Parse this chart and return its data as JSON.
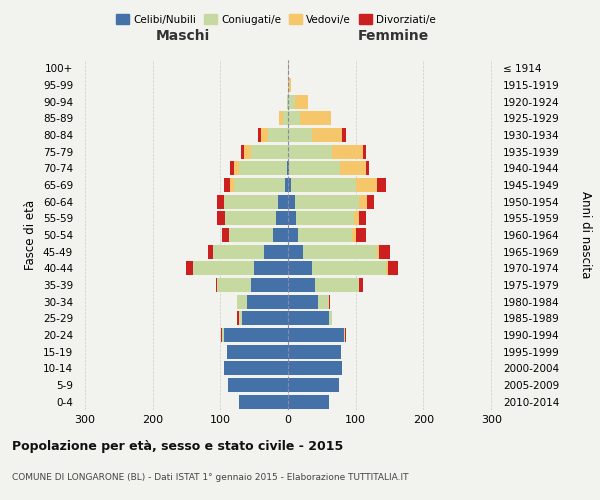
{
  "age_groups": [
    "0-4",
    "5-9",
    "10-14",
    "15-19",
    "20-24",
    "25-29",
    "30-34",
    "35-39",
    "40-44",
    "45-49",
    "50-54",
    "55-59",
    "60-64",
    "65-69",
    "70-74",
    "75-79",
    "80-84",
    "85-89",
    "90-94",
    "95-99",
    "100+"
  ],
  "birth_years": [
    "2010-2014",
    "2005-2009",
    "2000-2004",
    "1995-1999",
    "1990-1994",
    "1985-1989",
    "1980-1984",
    "1975-1979",
    "1970-1974",
    "1965-1969",
    "1960-1964",
    "1955-1959",
    "1950-1954",
    "1945-1949",
    "1940-1944",
    "1935-1939",
    "1930-1934",
    "1925-1929",
    "1920-1924",
    "1915-1919",
    "≤ 1914"
  ],
  "males": {
    "celibe": [
      72,
      88,
      95,
      90,
      95,
      68,
      60,
      55,
      50,
      35,
      22,
      18,
      15,
      5,
      2,
      0,
      0,
      0,
      0,
      0,
      0
    ],
    "coniugato": [
      0,
      0,
      0,
      0,
      2,
      5,
      15,
      50,
      90,
      75,
      65,
      75,
      80,
      75,
      70,
      55,
      30,
      8,
      2,
      0,
      0
    ],
    "vedovo": [
      0,
      0,
      0,
      0,
      0,
      0,
      0,
      0,
      0,
      0,
      0,
      0,
      0,
      5,
      8,
      10,
      10,
      5,
      0,
      0,
      0
    ],
    "divorziato": [
      0,
      0,
      0,
      0,
      2,
      2,
      0,
      2,
      10,
      8,
      10,
      12,
      10,
      10,
      5,
      5,
      5,
      0,
      0,
      0,
      0
    ]
  },
  "females": {
    "nubile": [
      60,
      75,
      80,
      78,
      82,
      60,
      45,
      40,
      35,
      22,
      15,
      12,
      10,
      5,
      2,
      0,
      0,
      0,
      0,
      0,
      0
    ],
    "coniugata": [
      0,
      0,
      0,
      0,
      2,
      5,
      15,
      65,
      110,
      110,
      80,
      85,
      95,
      95,
      75,
      65,
      35,
      18,
      10,
      2,
      0
    ],
    "vedova": [
      0,
      0,
      0,
      0,
      0,
      0,
      0,
      0,
      3,
      3,
      5,
      8,
      12,
      32,
      38,
      45,
      45,
      45,
      20,
      2,
      2
    ],
    "divorziata": [
      0,
      0,
      0,
      0,
      2,
      0,
      2,
      5,
      15,
      15,
      15,
      10,
      10,
      12,
      5,
      5,
      5,
      0,
      0,
      0,
      0
    ]
  },
  "colors": {
    "celibe": "#4472a8",
    "coniugato": "#c5d9a0",
    "vedovo": "#f5c76a",
    "divorziato": "#cc2020"
  },
  "xlim": 310,
  "title": "Popolazione per età, sesso e stato civile - 2015",
  "subtitle": "COMUNE DI LONGARONE (BL) - Dati ISTAT 1° gennaio 2015 - Elaborazione TUTTITALIA.IT",
  "ylabel_left": "Fasce di età",
  "ylabel_right": "Anni di nascita",
  "xlabel_left": "Maschi",
  "xlabel_right": "Femmine",
  "background_color": "#f2f2ee",
  "grid_color": "#cccccc"
}
